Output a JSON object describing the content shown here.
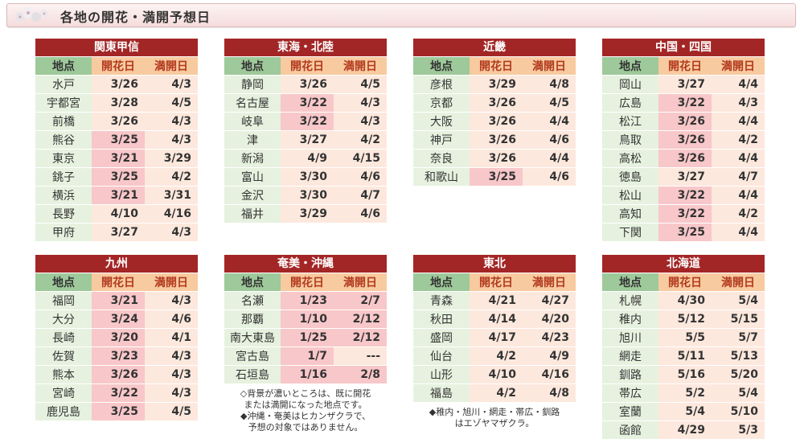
{
  "header": {
    "title": "各地の開花・満開予想日"
  },
  "columns": {
    "place": "地点",
    "bloom": "開花日",
    "full": "満開日"
  },
  "regions": [
    {
      "name": "関東甲信",
      "rows": [
        {
          "place": "水戸",
          "bloom": "3/26",
          "full": "4/3",
          "hl_bloom": false,
          "hl_full": false
        },
        {
          "place": "宇都宮",
          "bloom": "3/28",
          "full": "4/5",
          "hl_bloom": false,
          "hl_full": false
        },
        {
          "place": "前橋",
          "bloom": "3/26",
          "full": "4/3",
          "hl_bloom": false,
          "hl_full": false
        },
        {
          "place": "熊谷",
          "bloom": "3/25",
          "full": "4/3",
          "hl_bloom": true,
          "hl_full": false
        },
        {
          "place": "東京",
          "bloom": "3/21",
          "full": "3/29",
          "hl_bloom": true,
          "hl_full": false
        },
        {
          "place": "銚子",
          "bloom": "3/25",
          "full": "4/2",
          "hl_bloom": true,
          "hl_full": false
        },
        {
          "place": "横浜",
          "bloom": "3/21",
          "full": "3/31",
          "hl_bloom": true,
          "hl_full": false
        },
        {
          "place": "長野",
          "bloom": "4/10",
          "full": "4/16",
          "hl_bloom": false,
          "hl_full": false
        },
        {
          "place": "甲府",
          "bloom": "3/27",
          "full": "4/3",
          "hl_bloom": false,
          "hl_full": false
        }
      ]
    },
    {
      "name": "東海・北陸",
      "rows": [
        {
          "place": "静岡",
          "bloom": "3/26",
          "full": "4/5",
          "hl_bloom": false,
          "hl_full": false
        },
        {
          "place": "名古屋",
          "bloom": "3/22",
          "full": "4/3",
          "hl_bloom": true,
          "hl_full": false
        },
        {
          "place": "岐阜",
          "bloom": "3/22",
          "full": "4/3",
          "hl_bloom": true,
          "hl_full": false
        },
        {
          "place": "津",
          "bloom": "3/27",
          "full": "4/2",
          "hl_bloom": false,
          "hl_full": false
        },
        {
          "place": "新潟",
          "bloom": "4/9",
          "full": "4/15",
          "hl_bloom": false,
          "hl_full": false
        },
        {
          "place": "富山",
          "bloom": "3/30",
          "full": "4/6",
          "hl_bloom": false,
          "hl_full": false
        },
        {
          "place": "金沢",
          "bloom": "3/30",
          "full": "4/7",
          "hl_bloom": false,
          "hl_full": false
        },
        {
          "place": "福井",
          "bloom": "3/29",
          "full": "4/6",
          "hl_bloom": false,
          "hl_full": false
        }
      ]
    },
    {
      "name": "近畿",
      "rows": [
        {
          "place": "彦根",
          "bloom": "3/29",
          "full": "4/8",
          "hl_bloom": false,
          "hl_full": false
        },
        {
          "place": "京都",
          "bloom": "3/26",
          "full": "4/5",
          "hl_bloom": false,
          "hl_full": false
        },
        {
          "place": "大阪",
          "bloom": "3/26",
          "full": "4/4",
          "hl_bloom": false,
          "hl_full": false
        },
        {
          "place": "神戸",
          "bloom": "3/26",
          "full": "4/6",
          "hl_bloom": false,
          "hl_full": false
        },
        {
          "place": "奈良",
          "bloom": "3/26",
          "full": "4/4",
          "hl_bloom": false,
          "hl_full": false
        },
        {
          "place": "和歌山",
          "bloom": "3/25",
          "full": "4/6",
          "hl_bloom": true,
          "hl_full": false
        }
      ]
    },
    {
      "name": "中国・四国",
      "rows": [
        {
          "place": "岡山",
          "bloom": "3/27",
          "full": "4/4",
          "hl_bloom": false,
          "hl_full": false
        },
        {
          "place": "広島",
          "bloom": "3/22",
          "full": "4/3",
          "hl_bloom": true,
          "hl_full": false
        },
        {
          "place": "松江",
          "bloom": "3/26",
          "full": "4/4",
          "hl_bloom": true,
          "hl_full": false
        },
        {
          "place": "鳥取",
          "bloom": "3/26",
          "full": "4/2",
          "hl_bloom": true,
          "hl_full": false
        },
        {
          "place": "高松",
          "bloom": "3/26",
          "full": "4/4",
          "hl_bloom": true,
          "hl_full": false
        },
        {
          "place": "徳島",
          "bloom": "3/27",
          "full": "4/7",
          "hl_bloom": false,
          "hl_full": false
        },
        {
          "place": "松山",
          "bloom": "3/22",
          "full": "4/4",
          "hl_bloom": true,
          "hl_full": false
        },
        {
          "place": "高知",
          "bloom": "3/22",
          "full": "4/2",
          "hl_bloom": true,
          "hl_full": false
        },
        {
          "place": "下関",
          "bloom": "3/25",
          "full": "4/4",
          "hl_bloom": true,
          "hl_full": false
        }
      ]
    },
    {
      "name": "九州",
      "rows": [
        {
          "place": "福岡",
          "bloom": "3/21",
          "full": "4/3",
          "hl_bloom": true,
          "hl_full": false
        },
        {
          "place": "大分",
          "bloom": "3/24",
          "full": "4/6",
          "hl_bloom": true,
          "hl_full": false
        },
        {
          "place": "長崎",
          "bloom": "3/20",
          "full": "4/1",
          "hl_bloom": true,
          "hl_full": false
        },
        {
          "place": "佐賀",
          "bloom": "3/23",
          "full": "4/3",
          "hl_bloom": true,
          "hl_full": false
        },
        {
          "place": "熊本",
          "bloom": "3/26",
          "full": "4/3",
          "hl_bloom": true,
          "hl_full": false
        },
        {
          "place": "宮崎",
          "bloom": "3/22",
          "full": "4/3",
          "hl_bloom": true,
          "hl_full": false
        },
        {
          "place": "鹿児島",
          "bloom": "3/25",
          "full": "4/5",
          "hl_bloom": true,
          "hl_full": false
        }
      ]
    },
    {
      "name": "奄美・沖縄",
      "rows": [
        {
          "place": "名瀬",
          "bloom": "1/23",
          "full": "2/7",
          "hl_bloom": true,
          "hl_full": true
        },
        {
          "place": "那覇",
          "bloom": "1/10",
          "full": "2/12",
          "hl_bloom": true,
          "hl_full": true
        },
        {
          "place": "南大東島",
          "bloom": "1/25",
          "full": "2/12",
          "hl_bloom": true,
          "hl_full": true
        },
        {
          "place": "宮古島",
          "bloom": "1/7",
          "full": "---",
          "hl_bloom": true,
          "hl_full": false
        },
        {
          "place": "石垣島",
          "bloom": "1/16",
          "full": "2/8",
          "hl_bloom": true,
          "hl_full": true
        }
      ]
    },
    {
      "name": "東北",
      "rows": [
        {
          "place": "青森",
          "bloom": "4/21",
          "full": "4/27",
          "hl_bloom": false,
          "hl_full": false
        },
        {
          "place": "秋田",
          "bloom": "4/14",
          "full": "4/20",
          "hl_bloom": false,
          "hl_full": false
        },
        {
          "place": "盛岡",
          "bloom": "4/17",
          "full": "4/23",
          "hl_bloom": false,
          "hl_full": false
        },
        {
          "place": "仙台",
          "bloom": "4/2",
          "full": "4/9",
          "hl_bloom": false,
          "hl_full": false
        },
        {
          "place": "山形",
          "bloom": "4/10",
          "full": "4/16",
          "hl_bloom": false,
          "hl_full": false
        },
        {
          "place": "福島",
          "bloom": "4/2",
          "full": "4/8",
          "hl_bloom": false,
          "hl_full": false
        }
      ]
    },
    {
      "name": "北海道",
      "rows": [
        {
          "place": "札幌",
          "bloom": "4/30",
          "full": "5/4",
          "hl_bloom": false,
          "hl_full": false
        },
        {
          "place": "稚内",
          "bloom": "5/12",
          "full": "5/15",
          "hl_bloom": false,
          "hl_full": false
        },
        {
          "place": "旭川",
          "bloom": "5/5",
          "full": "5/7",
          "hl_bloom": false,
          "hl_full": false
        },
        {
          "place": "網走",
          "bloom": "5/11",
          "full": "5/13",
          "hl_bloom": false,
          "hl_full": false
        },
        {
          "place": "釧路",
          "bloom": "5/16",
          "full": "5/20",
          "hl_bloom": false,
          "hl_full": false
        },
        {
          "place": "帯広",
          "bloom": "5/2",
          "full": "5/4",
          "hl_bloom": false,
          "hl_full": false
        },
        {
          "place": "室蘭",
          "bloom": "5/4",
          "full": "5/10",
          "hl_bloom": false,
          "hl_full": false
        },
        {
          "place": "函館",
          "bloom": "4/29",
          "full": "5/3",
          "hl_bloom": false,
          "hl_full": false
        }
      ]
    }
  ],
  "notes": {
    "okinawa_1": "◇背景が濃いところは、既に開花",
    "okinawa_2": "または満開になった地点です。",
    "okinawa_3": "◆沖縄・奄美はヒカンザクラで、",
    "okinawa_4": "予想の対象ではありません。",
    "tohoku_1": "◆稚内・旭川・網走・帯広・釧路",
    "tohoku_2": "はエゾヤマザクラ。"
  },
  "colors": {
    "region_header": "#a32626",
    "place_header": "#9ec99a",
    "date_header": "#f8caa0",
    "place_cell": "#e6f2df",
    "date_cell": "#fde8dd",
    "highlight_cell": "#f8c7c9"
  }
}
